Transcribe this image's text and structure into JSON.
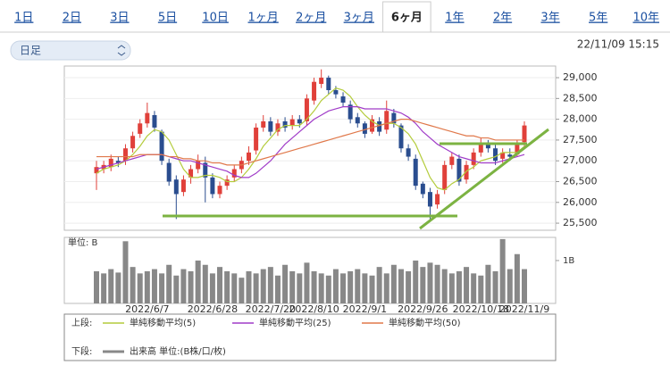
{
  "tabs": [
    "1日",
    "2日",
    "3日",
    "5日",
    "10日",
    "1ヶ月",
    "2ヶ月",
    "3ヶ月",
    "6ヶ月",
    "1年",
    "2年",
    "3年",
    "5年",
    "10年"
  ],
  "selected_tab": 8,
  "dropdown": "日足",
  "timestamp": "22/11/09 15:15",
  "chart_data": {
    "type": "candlestick",
    "categories": [
      null,
      null,
      null,
      null,
      null,
      null,
      null,
      "2022/6/7",
      null,
      null,
      null,
      null,
      null,
      null,
      null,
      null,
      "2022/6/28",
      null,
      null,
      null,
      null,
      null,
      null,
      null,
      "2022/7/20",
      null,
      null,
      null,
      null,
      null,
      "2022/8/10",
      null,
      null,
      null,
      null,
      null,
      null,
      "2022/9/1",
      null,
      null,
      null,
      null,
      null,
      null,
      null,
      "2022/9/26",
      null,
      null,
      null,
      null,
      null,
      null,
      null,
      "2022/10/18",
      null,
      null,
      null,
      null,
      null,
      "2022/11/9"
    ],
    "open": [
      26700,
      26800,
      26850,
      27000,
      27000,
      27300,
      27650,
      27900,
      28100,
      27700,
      26950,
      26550,
      26250,
      26600,
      26800,
      26950,
      26600,
      26200,
      26400,
      26600,
      26800,
      27000,
      27250,
      27800,
      27950,
      27700,
      27950,
      27850,
      28000,
      27950,
      28450,
      28850,
      29000,
      28700,
      28550,
      28350,
      28050,
      27900,
      27700,
      27950,
      27750,
      28150,
      27850,
      27300,
      27050,
      26450,
      26250,
      25950,
      26300,
      26900,
      27050,
      26550,
      26900,
      27200,
      27400,
      27300,
      27050,
      27150,
      27150,
      27450
    ],
    "high": [
      27000,
      27000,
      27150,
      27100,
      27400,
      27700,
      28000,
      28400,
      28200,
      27750,
      27050,
      26650,
      26650,
      26900,
      27150,
      27100,
      26700,
      26500,
      26650,
      26900,
      27100,
      27350,
      27900,
      28100,
      28050,
      28000,
      28050,
      28100,
      28100,
      28600,
      29000,
      29200,
      29050,
      28800,
      28650,
      28450,
      28150,
      27950,
      28100,
      28050,
      28450,
      28250,
      27900,
      27400,
      27150,
      26500,
      26350,
      26300,
      27000,
      27200,
      27150,
      27000,
      27300,
      27550,
      27500,
      27400,
      27300,
      27300,
      27500,
      27950
    ],
    "low": [
      26300,
      26700,
      26750,
      26850,
      26900,
      27200,
      27550,
      27800,
      27700,
      26900,
      26400,
      25600,
      26150,
      26450,
      26700,
      26000,
      26100,
      26100,
      26300,
      26500,
      26700,
      26900,
      27150,
      27700,
      27600,
      27600,
      27700,
      27750,
      27800,
      27850,
      28350,
      28750,
      28600,
      28500,
      28300,
      27900,
      27800,
      27550,
      27650,
      27600,
      27650,
      27800,
      27200,
      27000,
      26300,
      26100,
      25600,
      25850,
      26200,
      26800,
      26400,
      26450,
      26800,
      27100,
      27200,
      26900,
      26950,
      27000,
      27100,
      27350
    ],
    "close": [
      26850,
      26900,
      27050,
      26950,
      27300,
      27600,
      27900,
      28150,
      27800,
      27000,
      26500,
      26200,
      26550,
      26800,
      27000,
      26600,
      26200,
      26400,
      26550,
      26800,
      27000,
      27200,
      27800,
      27950,
      27700,
      27900,
      27800,
      28000,
      27900,
      28500,
      28900,
      29000,
      28700,
      28600,
      28400,
      28000,
      27900,
      27650,
      28000,
      27700,
      28200,
      27900,
      27300,
      27100,
      26400,
      26200,
      25900,
      26200,
      26900,
      27100,
      26500,
      26900,
      27200,
      27400,
      27300,
      27000,
      27200,
      27100,
      27400,
      27850
    ],
    "up_color": "#e0403a",
    "down_color": "#2a4d8f",
    "series": [
      {
        "name": "単純移動平均(5)",
        "color": "#b4cc3c",
        "values": [
          26700,
          26800,
          26850,
          26900,
          27000,
          27150,
          27350,
          27600,
          27750,
          27700,
          27500,
          27150,
          26800,
          26600,
          26600,
          26650,
          26650,
          26600,
          26500,
          26500,
          26600,
          26800,
          27050,
          27350,
          27550,
          27750,
          27850,
          27850,
          27850,
          28000,
          28200,
          28450,
          28600,
          28750,
          28700,
          28550,
          28300,
          28100,
          27950,
          27850,
          27900,
          27900,
          27800,
          27650,
          27400,
          27000,
          26600,
          26350,
          26300,
          26450,
          26550,
          26750,
          26850,
          27000,
          27050,
          27100,
          27200,
          27200,
          27200,
          27350
        ]
      },
      {
        "name": "単純移動平均(25)",
        "color": "#a03cc8",
        "values": [
          26800,
          26850,
          26900,
          26950,
          27000,
          27050,
          27100,
          27150,
          27150,
          27150,
          27100,
          27050,
          27000,
          27000,
          26950,
          26900,
          26850,
          26800,
          26750,
          26650,
          26600,
          26600,
          26700,
          26850,
          27000,
          27200,
          27400,
          27550,
          27700,
          27850,
          28000,
          28100,
          28200,
          28250,
          28300,
          28300,
          28300,
          28250,
          28250,
          28250,
          28250,
          28200,
          28150,
          28050,
          27900,
          27700,
          27550,
          27400,
          27300,
          27200,
          27100,
          27050,
          27000,
          26950,
          26950,
          26950,
          27000,
          27050,
          27100,
          27150
        ]
      },
      {
        "name": "単純移動平均(50)",
        "color": "#e0784a",
        "values": [
          27100,
          27100,
          27100,
          27100,
          27100,
          27100,
          27150,
          27150,
          27150,
          27150,
          27100,
          27100,
          27050,
          27050,
          27000,
          27000,
          26950,
          26950,
          26900,
          26900,
          26900,
          26950,
          27000,
          27050,
          27100,
          27150,
          27200,
          27250,
          27300,
          27350,
          27400,
          27450,
          27500,
          27550,
          27600,
          27650,
          27700,
          27750,
          27800,
          27850,
          27900,
          27950,
          28000,
          28000,
          27950,
          27900,
          27850,
          27800,
          27750,
          27700,
          27650,
          27600,
          27600,
          27550,
          27550,
          27500,
          27500,
          27500,
          27500,
          27500
        ]
      }
    ],
    "ylim": [
      25330,
      29280
    ],
    "yticks": [
      {
        "value": 25500,
        "label": "25,500"
      },
      {
        "value": 26000,
        "label": "26,000"
      },
      {
        "value": 26500,
        "label": "26,500"
      },
      {
        "value": 27000,
        "label": "27,000"
      },
      {
        "value": 27500,
        "label": "27,500"
      },
      {
        "value": 28000,
        "label": "28,000"
      },
      {
        "value": 28500,
        "label": "28,500"
      },
      {
        "value": 29000,
        "label": "29,000"
      }
    ],
    "volume": {
      "unit_label": "単位: B",
      "name": "出来高 単位:(B株/口/枚)",
      "color": "#888888",
      "values": [
        0.75,
        0.7,
        0.8,
        0.72,
        1.45,
        0.85,
        0.7,
        0.75,
        0.8,
        0.7,
        0.9,
        0.65,
        0.8,
        0.75,
        1.0,
        0.9,
        0.7,
        0.85,
        0.75,
        0.7,
        0.6,
        0.75,
        0.7,
        0.8,
        0.85,
        0.65,
        0.9,
        0.75,
        0.7,
        0.95,
        0.75,
        0.7,
        0.65,
        0.8,
        0.7,
        0.75,
        0.8,
        0.7,
        0.65,
        0.85,
        0.7,
        0.9,
        0.8,
        0.75,
        1.0,
        0.85,
        0.95,
        0.9,
        0.8,
        0.7,
        0.75,
        0.85,
        0.7,
        0.65,
        0.9,
        0.75,
        1.5,
        0.8,
        1.15,
        0.8
      ],
      "ylim": [
        0,
        1.54
      ],
      "yticks": [
        {
          "value": 1,
          "label": "1B"
        }
      ]
    },
    "legend_upper": "上段:",
    "legend_lower": "下段:"
  }
}
